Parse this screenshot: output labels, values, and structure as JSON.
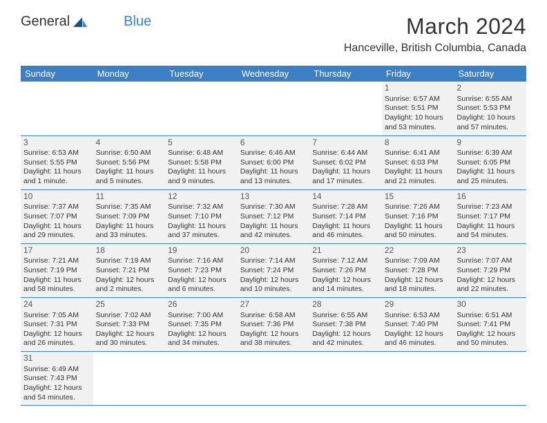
{
  "brand": {
    "part1": "General",
    "part2": "Blue"
  },
  "title": "March 2024",
  "location": "Hanceville, British Columbia, Canada",
  "colors": {
    "header_bg": "#3b7fc4",
    "header_text": "#ffffff",
    "cell_bg": "#f1f1f1",
    "cell_border": "#3b7fc4",
    "text": "#333333",
    "page_bg": "#ffffff"
  },
  "typography": {
    "title_fontsize": 32,
    "location_fontsize": 16,
    "dayheader_fontsize": 13,
    "cell_fontsize": 10.5,
    "daynum_fontsize": 12
  },
  "day_headers": [
    "Sunday",
    "Monday",
    "Tuesday",
    "Wednesday",
    "Thursday",
    "Friday",
    "Saturday"
  ],
  "weeks": [
    [
      null,
      null,
      null,
      null,
      null,
      {
        "n": "1",
        "sr": "Sunrise: 6:57 AM",
        "ss": "Sunset: 5:51 PM",
        "d1": "Daylight: 10 hours",
        "d2": "and 53 minutes."
      },
      {
        "n": "2",
        "sr": "Sunrise: 6:55 AM",
        "ss": "Sunset: 5:53 PM",
        "d1": "Daylight: 10 hours",
        "d2": "and 57 minutes."
      }
    ],
    [
      {
        "n": "3",
        "sr": "Sunrise: 6:53 AM",
        "ss": "Sunset: 5:55 PM",
        "d1": "Daylight: 11 hours",
        "d2": "and 1 minute."
      },
      {
        "n": "4",
        "sr": "Sunrise: 6:50 AM",
        "ss": "Sunset: 5:56 PM",
        "d1": "Daylight: 11 hours",
        "d2": "and 5 minutes."
      },
      {
        "n": "5",
        "sr": "Sunrise: 6:48 AM",
        "ss": "Sunset: 5:58 PM",
        "d1": "Daylight: 11 hours",
        "d2": "and 9 minutes."
      },
      {
        "n": "6",
        "sr": "Sunrise: 6:46 AM",
        "ss": "Sunset: 6:00 PM",
        "d1": "Daylight: 11 hours",
        "d2": "and 13 minutes."
      },
      {
        "n": "7",
        "sr": "Sunrise: 6:44 AM",
        "ss": "Sunset: 6:02 PM",
        "d1": "Daylight: 11 hours",
        "d2": "and 17 minutes."
      },
      {
        "n": "8",
        "sr": "Sunrise: 6:41 AM",
        "ss": "Sunset: 6:03 PM",
        "d1": "Daylight: 11 hours",
        "d2": "and 21 minutes."
      },
      {
        "n": "9",
        "sr": "Sunrise: 6:39 AM",
        "ss": "Sunset: 6:05 PM",
        "d1": "Daylight: 11 hours",
        "d2": "and 25 minutes."
      }
    ],
    [
      {
        "n": "10",
        "sr": "Sunrise: 7:37 AM",
        "ss": "Sunset: 7:07 PM",
        "d1": "Daylight: 11 hours",
        "d2": "and 29 minutes."
      },
      {
        "n": "11",
        "sr": "Sunrise: 7:35 AM",
        "ss": "Sunset: 7:09 PM",
        "d1": "Daylight: 11 hours",
        "d2": "and 33 minutes."
      },
      {
        "n": "12",
        "sr": "Sunrise: 7:32 AM",
        "ss": "Sunset: 7:10 PM",
        "d1": "Daylight: 11 hours",
        "d2": "and 37 minutes."
      },
      {
        "n": "13",
        "sr": "Sunrise: 7:30 AM",
        "ss": "Sunset: 7:12 PM",
        "d1": "Daylight: 11 hours",
        "d2": "and 42 minutes."
      },
      {
        "n": "14",
        "sr": "Sunrise: 7:28 AM",
        "ss": "Sunset: 7:14 PM",
        "d1": "Daylight: 11 hours",
        "d2": "and 46 minutes."
      },
      {
        "n": "15",
        "sr": "Sunrise: 7:26 AM",
        "ss": "Sunset: 7:16 PM",
        "d1": "Daylight: 11 hours",
        "d2": "and 50 minutes."
      },
      {
        "n": "16",
        "sr": "Sunrise: 7:23 AM",
        "ss": "Sunset: 7:17 PM",
        "d1": "Daylight: 11 hours",
        "d2": "and 54 minutes."
      }
    ],
    [
      {
        "n": "17",
        "sr": "Sunrise: 7:21 AM",
        "ss": "Sunset: 7:19 PM",
        "d1": "Daylight: 11 hours",
        "d2": "and 58 minutes."
      },
      {
        "n": "18",
        "sr": "Sunrise: 7:19 AM",
        "ss": "Sunset: 7:21 PM",
        "d1": "Daylight: 12 hours",
        "d2": "and 2 minutes."
      },
      {
        "n": "19",
        "sr": "Sunrise: 7:16 AM",
        "ss": "Sunset: 7:23 PM",
        "d1": "Daylight: 12 hours",
        "d2": "and 6 minutes."
      },
      {
        "n": "20",
        "sr": "Sunrise: 7:14 AM",
        "ss": "Sunset: 7:24 PM",
        "d1": "Daylight: 12 hours",
        "d2": "and 10 minutes."
      },
      {
        "n": "21",
        "sr": "Sunrise: 7:12 AM",
        "ss": "Sunset: 7:26 PM",
        "d1": "Daylight: 12 hours",
        "d2": "and 14 minutes."
      },
      {
        "n": "22",
        "sr": "Sunrise: 7:09 AM",
        "ss": "Sunset: 7:28 PM",
        "d1": "Daylight: 12 hours",
        "d2": "and 18 minutes."
      },
      {
        "n": "23",
        "sr": "Sunrise: 7:07 AM",
        "ss": "Sunset: 7:29 PM",
        "d1": "Daylight: 12 hours",
        "d2": "and 22 minutes."
      }
    ],
    [
      {
        "n": "24",
        "sr": "Sunrise: 7:05 AM",
        "ss": "Sunset: 7:31 PM",
        "d1": "Daylight: 12 hours",
        "d2": "and 26 minutes."
      },
      {
        "n": "25",
        "sr": "Sunrise: 7:02 AM",
        "ss": "Sunset: 7:33 PM",
        "d1": "Daylight: 12 hours",
        "d2": "and 30 minutes."
      },
      {
        "n": "26",
        "sr": "Sunrise: 7:00 AM",
        "ss": "Sunset: 7:35 PM",
        "d1": "Daylight: 12 hours",
        "d2": "and 34 minutes."
      },
      {
        "n": "27",
        "sr": "Sunrise: 6:58 AM",
        "ss": "Sunset: 7:36 PM",
        "d1": "Daylight: 12 hours",
        "d2": "and 38 minutes."
      },
      {
        "n": "28",
        "sr": "Sunrise: 6:55 AM",
        "ss": "Sunset: 7:38 PM",
        "d1": "Daylight: 12 hours",
        "d2": "and 42 minutes."
      },
      {
        "n": "29",
        "sr": "Sunrise: 6:53 AM",
        "ss": "Sunset: 7:40 PM",
        "d1": "Daylight: 12 hours",
        "d2": "and 46 minutes."
      },
      {
        "n": "30",
        "sr": "Sunrise: 6:51 AM",
        "ss": "Sunset: 7:41 PM",
        "d1": "Daylight: 12 hours",
        "d2": "and 50 minutes."
      }
    ],
    [
      {
        "n": "31",
        "sr": "Sunrise: 6:49 AM",
        "ss": "Sunset: 7:43 PM",
        "d1": "Daylight: 12 hours",
        "d2": "and 54 minutes."
      },
      null,
      null,
      null,
      null,
      null,
      null
    ]
  ]
}
